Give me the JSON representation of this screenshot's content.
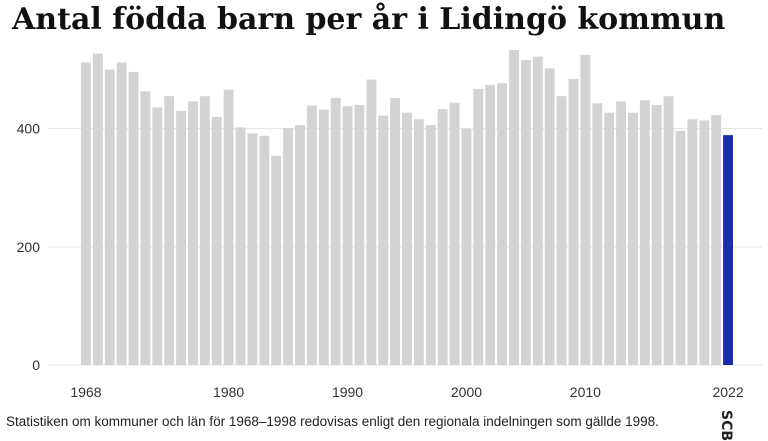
{
  "title": "Antal födda barn per år i Lidingö kommun",
  "footnote": "Statistiken om kommuner och län för 1968–1998 redovisas enligt den regionala indelningen som gällde 1998.",
  "logo_text": "SCB",
  "colors": {
    "bar": "#d3d3d3",
    "highlight": "#1c2ca8",
    "grid": "#e3e3e3",
    "tick_text": "#333333"
  },
  "chart_data": {
    "type": "bar",
    "title": "Antal födda barn per år i Lidingö kommun",
    "xlabel": "",
    "ylabel": "",
    "categories": [
      1968,
      1969,
      1970,
      1971,
      1972,
      1973,
      1974,
      1975,
      1976,
      1977,
      1978,
      1979,
      1980,
      1981,
      1982,
      1983,
      1984,
      1985,
      1986,
      1987,
      1988,
      1989,
      1990,
      1991,
      1992,
      1993,
      1994,
      1995,
      1996,
      1997,
      1998,
      1999,
      2000,
      2001,
      2002,
      2003,
      2004,
      2005,
      2006,
      2007,
      2008,
      2009,
      2010,
      2011,
      2012,
      2013,
      2014,
      2015,
      2016,
      2017,
      2018,
      2019,
      2020,
      2021,
      2022
    ],
    "values": [
      512,
      527,
      500,
      512,
      496,
      463,
      436,
      455,
      430,
      446,
      455,
      420,
      466,
      402,
      392,
      388,
      354,
      401,
      406,
      439,
      432,
      452,
      438,
      440,
      483,
      422,
      452,
      427,
      416,
      406,
      433,
      444,
      400,
      467,
      474,
      477,
      533,
      516,
      522,
      502,
      455,
      484,
      525,
      443,
      427,
      446,
      427,
      448,
      440,
      455,
      396,
      416,
      414,
      423,
      389
    ],
    "highlight": [
      2022
    ],
    "ylim": [
      0,
      550
    ],
    "yticks": [
      0,
      200,
      400
    ],
    "xticks": [
      1968,
      1980,
      1990,
      2000,
      2010,
      2022
    ],
    "grid": true
  }
}
